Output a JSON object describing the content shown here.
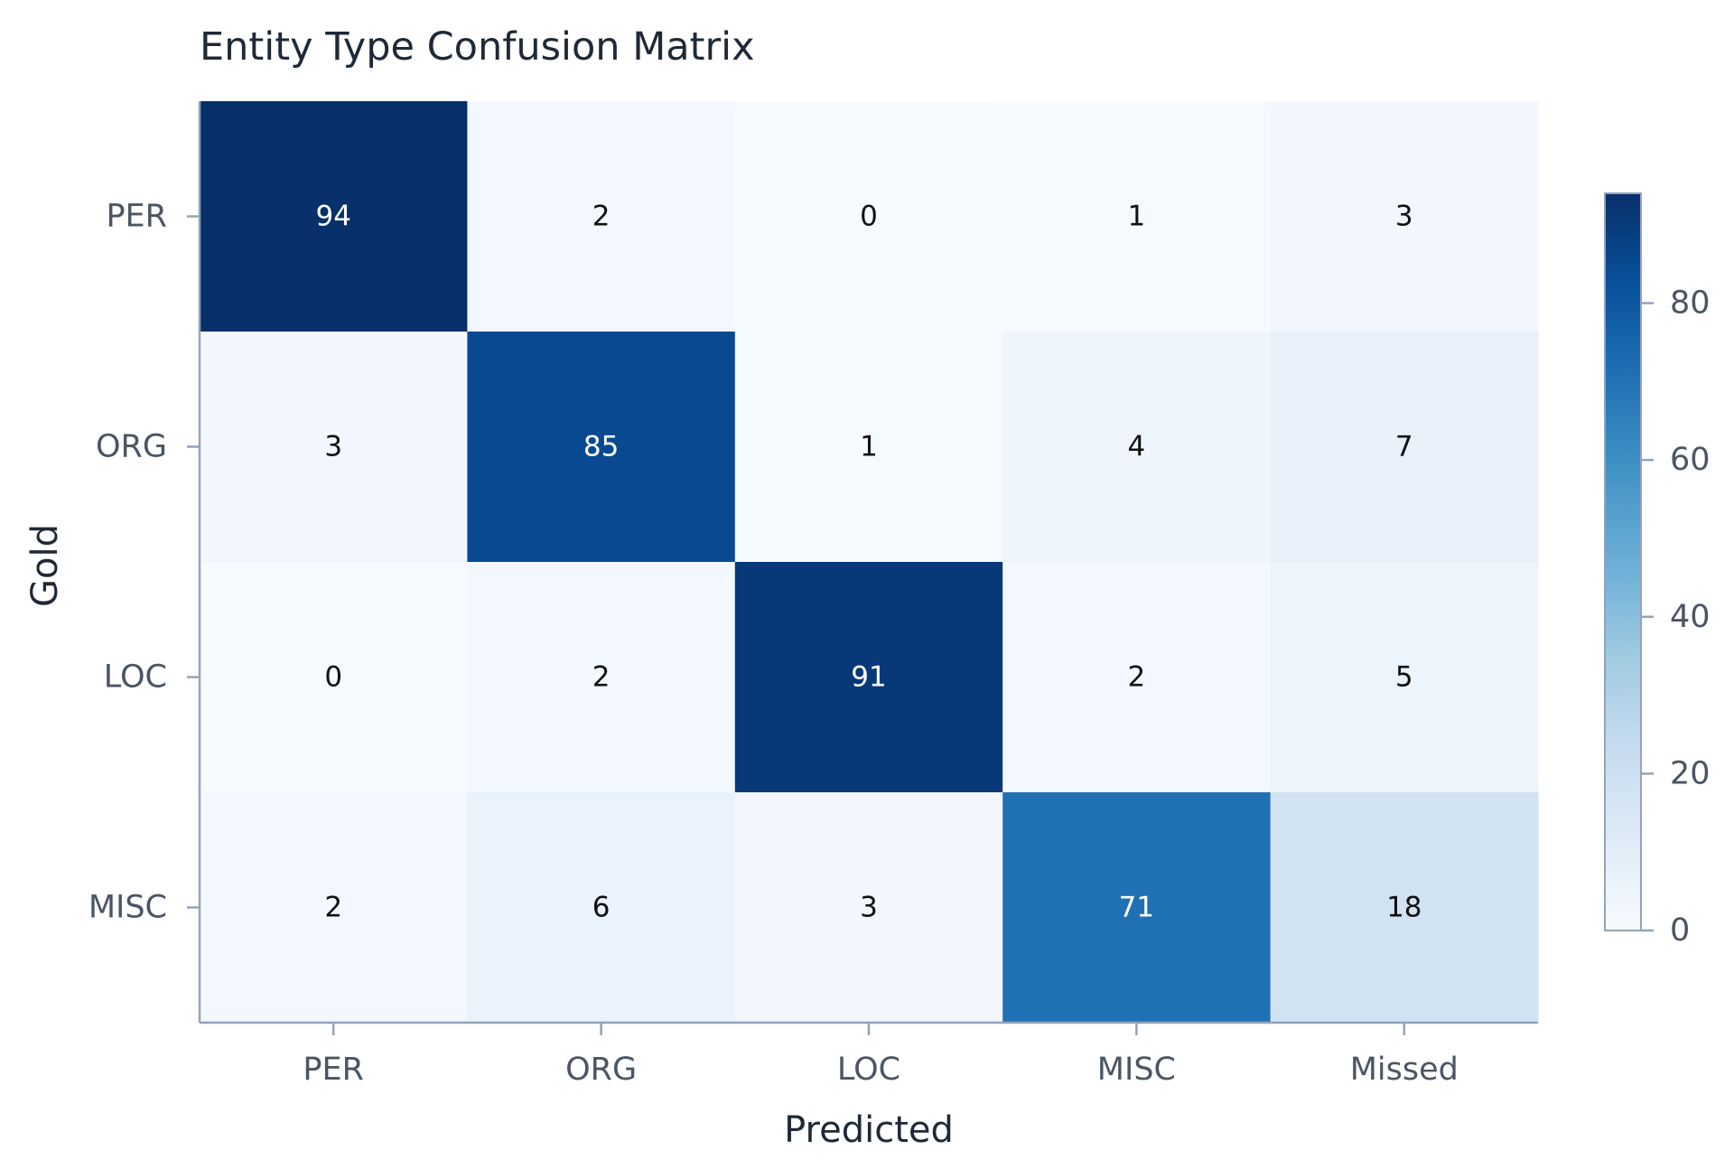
{
  "chart_data": {
    "type": "heatmap",
    "title": "Entity Type Confusion Matrix",
    "xlabel": "Predicted",
    "ylabel": "Gold",
    "x_categories": [
      "PER",
      "ORG",
      "LOC",
      "MISC",
      "Missed"
    ],
    "y_categories": [
      "PER",
      "ORG",
      "LOC",
      "MISC"
    ],
    "values": [
      [
        94,
        2,
        0,
        1,
        3
      ],
      [
        3,
        85,
        1,
        4,
        7
      ],
      [
        0,
        2,
        91,
        2,
        5
      ],
      [
        2,
        6,
        3,
        71,
        18
      ]
    ],
    "colormap": "Blues",
    "colorbar": {
      "range": [
        0,
        94
      ],
      "ticks": [
        0,
        20,
        40,
        60,
        80
      ],
      "tick_labels": [
        "0",
        "20",
        "40",
        "60",
        "80"
      ]
    },
    "colors": {
      "light_text": "#ffffff",
      "dark_text": "#111111",
      "axis": "#94a3b8"
    }
  }
}
